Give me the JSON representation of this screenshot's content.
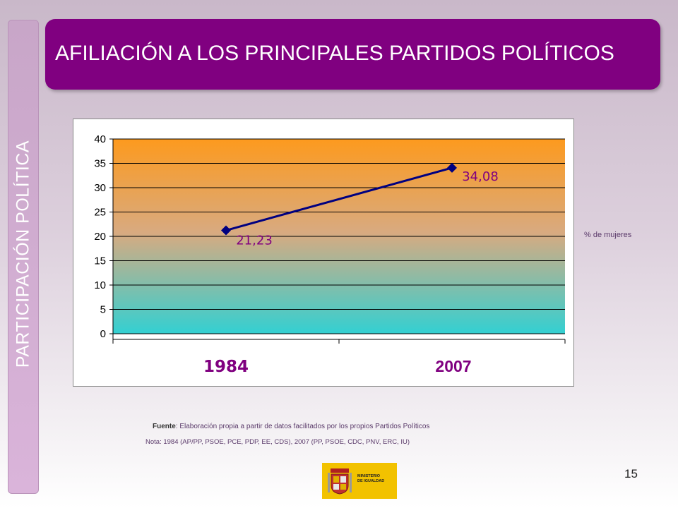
{
  "side_label": "PARTICIPACIÓN POLÍTICA",
  "title": "AFILIACIÓN A LOS PRINCIPALES PARTIDOS POLÍTICOS",
  "chart_data": {
    "type": "line",
    "categories": [
      "1984",
      "2007"
    ],
    "series": [
      {
        "name": "% de mujeres",
        "values": [
          21.23,
          34.08
        ],
        "data_labels": [
          "21,23",
          "34,08"
        ],
        "color": "#000080"
      }
    ],
    "ylim": [
      0,
      40
    ],
    "yticks": [
      0,
      5,
      10,
      15,
      20,
      25,
      30,
      35,
      40
    ],
    "grid": true,
    "legend": "right",
    "plot_background": "gradient orange-to-teal",
    "label_color": "#800080"
  },
  "legend_label": "% de mujeres",
  "source_label": "Fuente",
  "source_text": ": Elaboración propia a partir de datos facilitados por los propios Partidos Políticos",
  "note_text": "Nota: 1984 (AP/PP, PSOE, PCE, PDP, EE, CDS), 2007 (PP, PSOE, CDC, PNV, ERC, IU)",
  "logo_text": [
    "MINISTERIO",
    "DE IGUALDAD"
  ],
  "page_number": "15",
  "colors": {
    "title_bg": "#800080",
    "line": "#000080",
    "accent_text": "#800080"
  }
}
